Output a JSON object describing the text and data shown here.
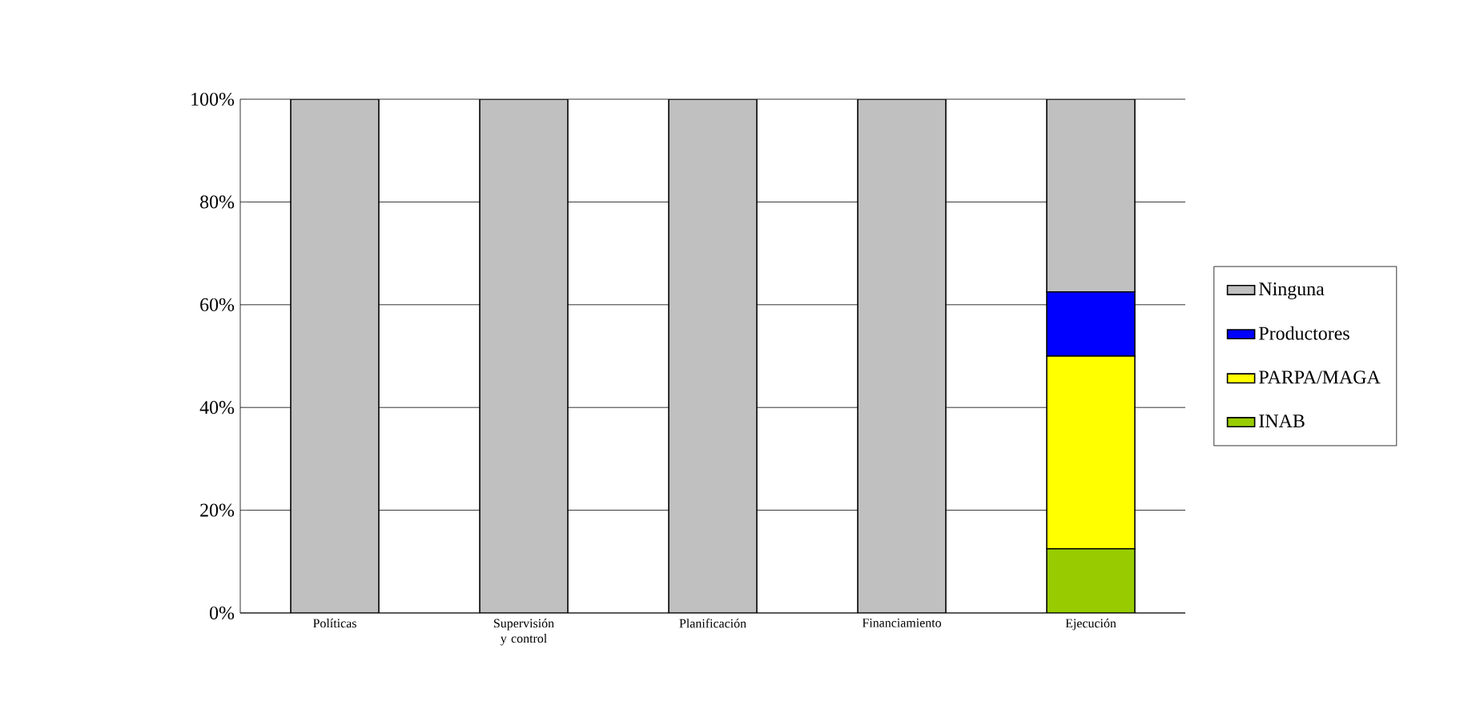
{
  "chart_data": {
    "type": "bar",
    "stacked": true,
    "categories": [
      "Políticas",
      "Supervisión y control",
      "Planificación",
      "Financiamiento",
      "Ejecución"
    ],
    "series": [
      {
        "name": "INAB",
        "color": "#99cc00",
        "values": [
          0,
          0,
          0,
          0,
          12.5
        ]
      },
      {
        "name": "PARPA/MAGA",
        "color": "#ffff00",
        "values": [
          0,
          0,
          0,
          0,
          37.5
        ]
      },
      {
        "name": "Productores",
        "color": "#0000ff",
        "values": [
          0,
          0,
          0,
          0,
          12.5
        ]
      },
      {
        "name": "Ninguna",
        "color": "#c0c0c0",
        "values": [
          100,
          100,
          100,
          100,
          37.5
        ]
      }
    ],
    "ylim": [
      0,
      100
    ],
    "yticks": [
      {
        "value": 0,
        "label": "0%"
      },
      {
        "value": 20,
        "label": "20%"
      },
      {
        "value": 40,
        "label": "40%"
      },
      {
        "value": 60,
        "label": "60%"
      },
      {
        "value": 80,
        "label": "80%"
      },
      {
        "value": 100,
        "label": "100%"
      }
    ],
    "grid": "y",
    "legend": "right"
  }
}
